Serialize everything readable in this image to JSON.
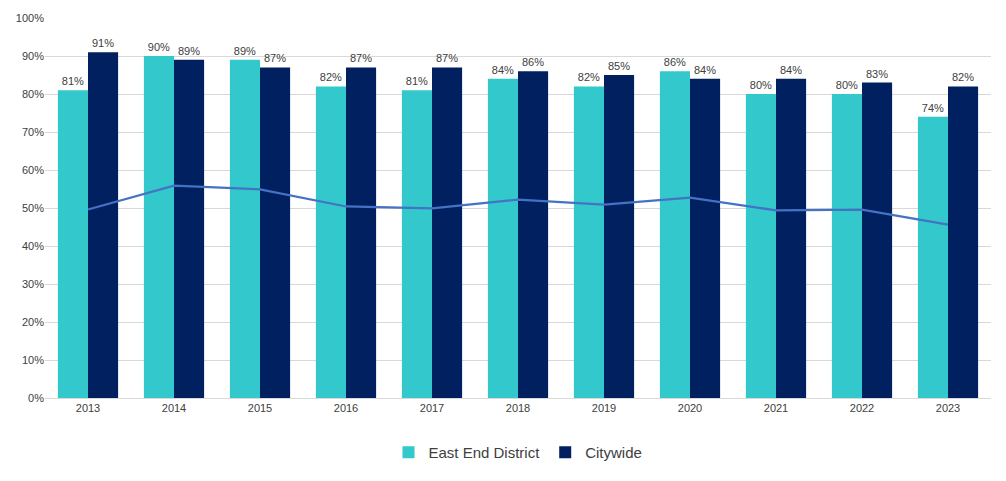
{
  "chart_data": {
    "type": "bar",
    "categories": [
      "2013",
      "2014",
      "2015",
      "2016",
      "2017",
      "2018",
      "2019",
      "2020",
      "2021",
      "2022",
      "2023"
    ],
    "series": [
      {
        "name": "East End District",
        "type": "bar",
        "color": "#33c9cc",
        "data_labels": true,
        "values": [
          81,
          90,
          89,
          82,
          81,
          84,
          82,
          86,
          80,
          80,
          74
        ],
        "value_labels": [
          "81%",
          "90%",
          "89%",
          "82%",
          "81%",
          "84%",
          "82%",
          "86%",
          "80%",
          "80%",
          "74%"
        ]
      },
      {
        "name": "Citywide",
        "type": "bar",
        "color": "#002060",
        "data_labels": true,
        "values": [
          91,
          89,
          87,
          87,
          87,
          86,
          85,
          84,
          84,
          83,
          82
        ],
        "value_labels": [
          "91%",
          "89%",
          "87%",
          "87%",
          "87%",
          "86%",
          "85%",
          "84%",
          "84%",
          "83%",
          "82%"
        ]
      },
      {
        "type": "line",
        "color": "#4472c4",
        "data_labels": false,
        "values": [
          49.6,
          55.9,
          54.9,
          50.4,
          49.9,
          52.2,
          50.9,
          52.7,
          49.4,
          49.6,
          45.6
        ]
      }
    ],
    "ylim": [
      0,
      100
    ],
    "yticks": [
      {
        "value": 0,
        "label": "0%"
      },
      {
        "value": 10,
        "label": "10%"
      },
      {
        "value": 20,
        "label": "20%"
      },
      {
        "value": 30,
        "label": "30%"
      },
      {
        "value": 40,
        "label": "40%"
      },
      {
        "value": 50,
        "label": "50%"
      },
      {
        "value": 60,
        "label": "60%"
      },
      {
        "value": 70,
        "label": "70%"
      },
      {
        "value": 80,
        "label": "80%"
      },
      {
        "value": 90,
        "label": "90%"
      },
      {
        "value": 100,
        "label": "100%"
      }
    ],
    "grid": true,
    "legend": "bottom"
  }
}
